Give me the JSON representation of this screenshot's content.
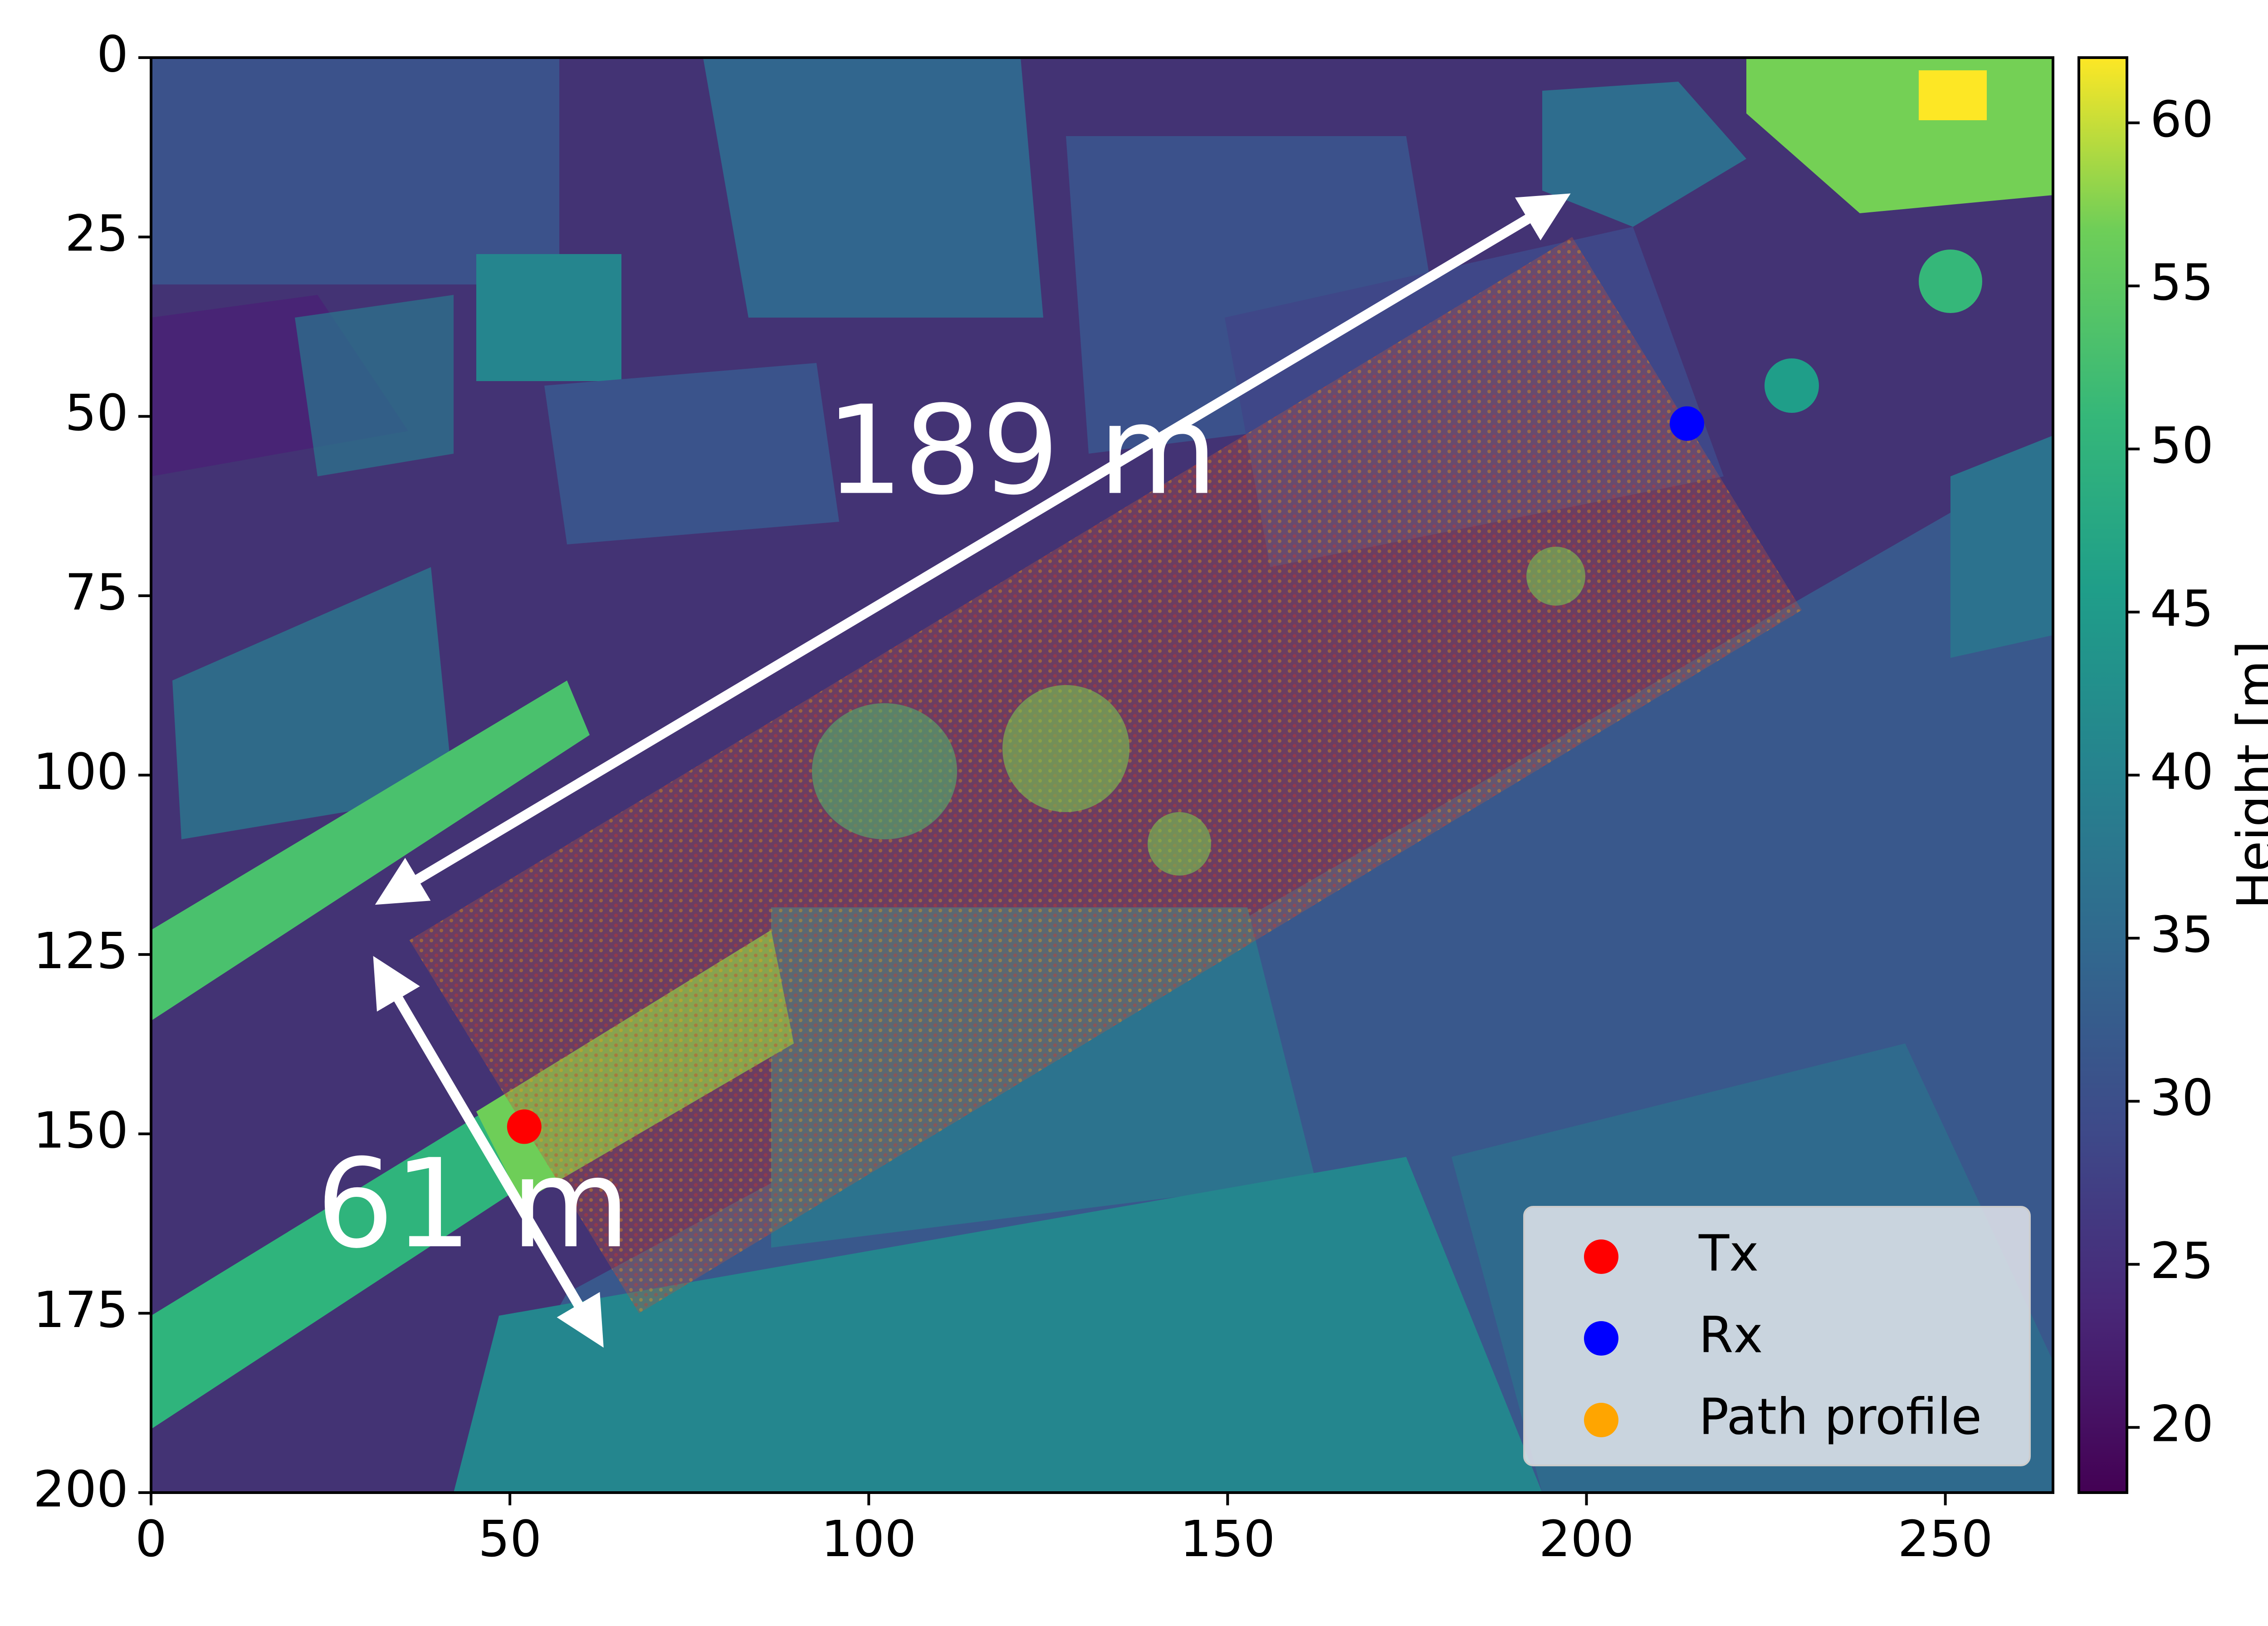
{
  "chart_data": {
    "type": "heatmap",
    "title": "",
    "xlabel": "",
    "ylabel": "",
    "xlim": [
      0,
      265
    ],
    "ylim": [
      200,
      0
    ],
    "x_ticks": [
      0,
      50,
      100,
      150,
      200,
      250
    ],
    "y_ticks": [
      0,
      25,
      50,
      75,
      100,
      125,
      150,
      175,
      200
    ],
    "colorbar": {
      "label": "Height [m]",
      "range": [
        18,
        62
      ],
      "ticks": [
        20,
        25,
        30,
        35,
        40,
        45,
        50,
        55,
        60
      ],
      "colormap": "viridis"
    },
    "points": [
      {
        "name": "Tx",
        "x": 52,
        "y": 149,
        "color": "#ff0000"
      },
      {
        "name": "Rx",
        "x": 214,
        "y": 51,
        "color": "#0000ff"
      }
    ],
    "path_profile": {
      "name": "Path profile",
      "color": "#ffa500",
      "corners": [
        [
          36,
          123
        ],
        [
          198,
          25
        ],
        [
          230,
          77
        ],
        [
          68,
          175
        ]
      ]
    },
    "annotations": [
      {
        "text": "189 m",
        "x": 94,
        "y": 56,
        "arrow_from": [
          33,
          117
        ],
        "arrow_to": [
          196,
          20
        ]
      },
      {
        "text": "61 m",
        "x": 23,
        "y": 161,
        "arrow_from": [
          32,
          127
        ],
        "arrow_to": [
          62,
          178
        ]
      }
    ],
    "legend": {
      "position": "lower-right",
      "entries": [
        "Tx",
        "Rx",
        "Path profile"
      ]
    }
  },
  "colors": {
    "tx": "#ff0000",
    "rx": "#0000ff",
    "path": "#ffa500",
    "arrow": "#ffffff"
  }
}
